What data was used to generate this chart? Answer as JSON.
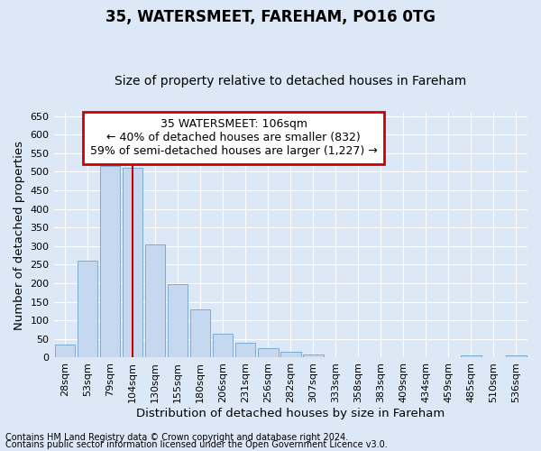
{
  "title": "35, WATERSMEET, FAREHAM, PO16 0TG",
  "subtitle": "Size of property relative to detached houses in Fareham",
  "xlabel": "Distribution of detached houses by size in Fareham",
  "ylabel": "Number of detached properties",
  "categories": [
    "28sqm",
    "53sqm",
    "79sqm",
    "104sqm",
    "130sqm",
    "155sqm",
    "180sqm",
    "206sqm",
    "231sqm",
    "256sqm",
    "282sqm",
    "307sqm",
    "333sqm",
    "358sqm",
    "383sqm",
    "409sqm",
    "434sqm",
    "459sqm",
    "485sqm",
    "510sqm",
    "536sqm"
  ],
  "values": [
    35,
    262,
    515,
    510,
    305,
    197,
    130,
    65,
    40,
    25,
    15,
    8,
    0,
    0,
    0,
    0,
    0,
    0,
    5,
    0,
    5
  ],
  "bar_color": "#c5d8f0",
  "bar_edge_color": "#7aadd4",
  "vline_x_index": 3,
  "vline_color": "#cc0000",
  "ylim": [
    0,
    660
  ],
  "yticks": [
    0,
    50,
    100,
    150,
    200,
    250,
    300,
    350,
    400,
    450,
    500,
    550,
    600,
    650
  ],
  "annotation_text": "35 WATERSMEET: 106sqm\n← 40% of detached houses are smaller (832)\n59% of semi-detached houses are larger (1,227) →",
  "annotation_box_color": "#cc0000",
  "footer_line1": "Contains HM Land Registry data © Crown copyright and database right 2024.",
  "footer_line2": "Contains public sector information licensed under the Open Government Licence v3.0.",
  "bg_color": "#dce8f5",
  "plot_bg_color": "#dce8f5",
  "grid_color": "#ffffff",
  "title_fontsize": 12,
  "subtitle_fontsize": 10,
  "axis_label_fontsize": 9.5,
  "tick_fontsize": 8,
  "footer_fontsize": 7,
  "annotation_fontsize": 9
}
